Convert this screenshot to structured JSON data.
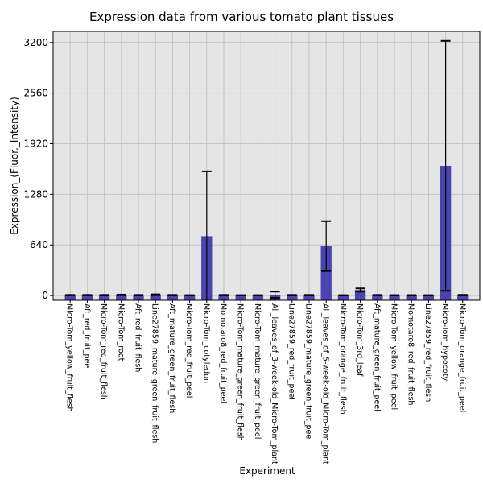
{
  "chart_data": {
    "type": "bar",
    "title": "Expression data from various tomato plant tissues",
    "xlabel": "Experiment",
    "ylabel": "Expression_(Fluor._Intensity)",
    "ylim": [
      -60,
      3340
    ],
    "yticks": [
      0,
      640,
      1280,
      1920,
      2560,
      3200
    ],
    "grid": true,
    "bar_color": "#4a44b2",
    "background": "#e5e5e5",
    "categories": [
      "Micro-Tom_yellow_fruit_flesh",
      "Aft_red_fruit_peel",
      "Micro-Tom_red_fruit_flesh",
      "Micro-Tom_root",
      "Aft_red_fruit_flesh",
      "Line27859_mature_green_fruit_flesh",
      "Aft_mature_green_fruit_flesh",
      "Micro-Tom_red_fruit_peel",
      "Micro-Tom_cotyledon",
      "Momotaro8_red_fruit_peel",
      "Micro-Tom_mature_green_fruit_flesh",
      "Micro-Tom_mature_green_fruit_peel",
      "All_leaves_of_3-week-old_Micro-Tom_plant",
      "Line27859_red_fruit_peel",
      "Line27859_mature_green_fruit_peel",
      "All_leaves_of_5-week-old_Micro-Tom_plant",
      "Micro-Tom_orange_fruit_flesh",
      "Micro-Tom_3rd_leaf",
      "Aft_mature_green_fruit_peel",
      "Micro-Tom_yellow_fruit_peel",
      "Momotaro8_red_fruit_flesh",
      "Line27859_red_fruit_flesh",
      "Micro-Tom_hypocotyl",
      "Micro-Tom_orange_fruit_peel"
    ],
    "values": [
      5,
      5,
      5,
      8,
      5,
      10,
      5,
      3,
      750,
      5,
      3,
      3,
      10,
      5,
      5,
      625,
      3,
      70,
      5,
      4,
      4,
      3,
      1640,
      5
    ],
    "errors": [
      3,
      3,
      3,
      4,
      3,
      5,
      3,
      2,
      820,
      3,
      2,
      2,
      40,
      3,
      3,
      315,
      2,
      20,
      3,
      2,
      2,
      2,
      1580,
      4
    ]
  }
}
